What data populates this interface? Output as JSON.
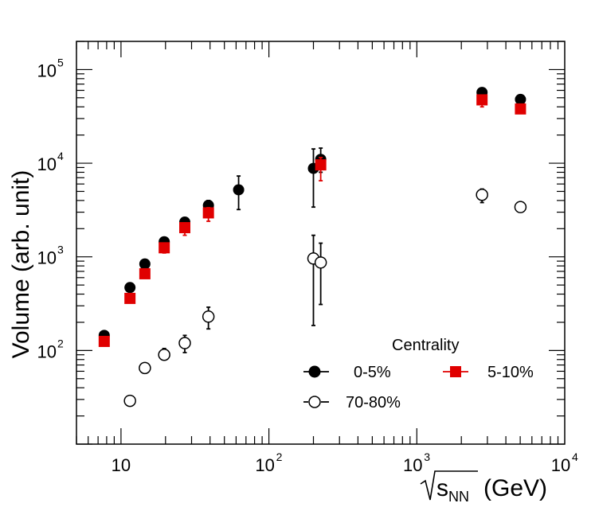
{
  "chart_data": {
    "type": "scatter",
    "xscale": "log",
    "yscale": "log",
    "xlim": [
      5,
      10000
    ],
    "ylim": [
      10,
      200000
    ],
    "xlabel_prefix": "√",
    "xlabel_main": "s",
    "xlabel_sub": "NN",
    "xlabel_unit": "(GeV)",
    "ylabel": "Volume (arb. unit)",
    "x_ticks": [
      {
        "value": 10,
        "base": "10",
        "exp": ""
      },
      {
        "value": 100,
        "base": "10",
        "exp": "2"
      },
      {
        "value": 1000,
        "base": "10",
        "exp": "3"
      },
      {
        "value": 10000,
        "base": "10",
        "exp": "4"
      }
    ],
    "y_ticks": [
      {
        "value": 100,
        "base": "10",
        "exp": "2"
      },
      {
        "value": 1000,
        "base": "10",
        "exp": "3"
      },
      {
        "value": 10000,
        "base": "10",
        "exp": "4"
      },
      {
        "value": 100000,
        "base": "10",
        "exp": "5"
      }
    ],
    "legend": {
      "title": "Centrality",
      "placement": "bottom-right"
    },
    "series": [
      {
        "name": "0-5%",
        "marker": "filled-circle",
        "color": "#000000",
        "points": [
          {
            "x": 7.7,
            "y": 145,
            "lo": 145,
            "hi": 145
          },
          {
            "x": 11.5,
            "y": 470,
            "lo": 470,
            "hi": 470
          },
          {
            "x": 14.5,
            "y": 840,
            "lo": 840,
            "hi": 840
          },
          {
            "x": 19.6,
            "y": 1450,
            "lo": 1450,
            "hi": 1450
          },
          {
            "x": 27,
            "y": 2350,
            "lo": 2150,
            "hi": 2550
          },
          {
            "x": 39,
            "y": 3550,
            "lo": 3150,
            "hi": 4000
          },
          {
            "x": 62.4,
            "y": 5200,
            "lo": 3200,
            "hi": 7300
          },
          {
            "x": 200,
            "y": 8800,
            "lo": 3400,
            "hi": 14200
          },
          {
            "x": 224,
            "y": 11000,
            "lo": 8000,
            "hi": 14500
          },
          {
            "x": 2760,
            "y": 57000,
            "lo": 50000,
            "hi": 63000
          },
          {
            "x": 5020,
            "y": 48000,
            "lo": 48000,
            "hi": 48000
          }
        ]
      },
      {
        "name": "5-10%",
        "marker": "filled-square",
        "color": "#e00000",
        "points": [
          {
            "x": 7.7,
            "y": 125,
            "lo": 125,
            "hi": 125
          },
          {
            "x": 11.5,
            "y": 360,
            "lo": 360,
            "hi": 360
          },
          {
            "x": 14.5,
            "y": 660,
            "lo": 660,
            "hi": 660
          },
          {
            "x": 19.6,
            "y": 1250,
            "lo": 1100,
            "hi": 1350
          },
          {
            "x": 27,
            "y": 2050,
            "lo": 1700,
            "hi": 2300
          },
          {
            "x": 39,
            "y": 2950,
            "lo": 2400,
            "hi": 3350
          },
          {
            "x": 224,
            "y": 9600,
            "lo": 6500,
            "hi": 11500
          },
          {
            "x": 2760,
            "y": 47500,
            "lo": 40000,
            "hi": 52000
          },
          {
            "x": 5020,
            "y": 38000,
            "lo": 38000,
            "hi": 38000
          }
        ]
      },
      {
        "name": "70-80%",
        "marker": "open-circle",
        "color": "#000000",
        "points": [
          {
            "x": 11.5,
            "y": 29,
            "lo": 29,
            "hi": 29
          },
          {
            "x": 14.5,
            "y": 65,
            "lo": 65,
            "hi": 65
          },
          {
            "x": 19.6,
            "y": 90,
            "lo": 80,
            "hi": 105
          },
          {
            "x": 27,
            "y": 120,
            "lo": 95,
            "hi": 145
          },
          {
            "x": 39,
            "y": 230,
            "lo": 170,
            "hi": 290
          },
          {
            "x": 200,
            "y": 960,
            "lo": 185,
            "hi": 1700
          },
          {
            "x": 224,
            "y": 870,
            "lo": 310,
            "hi": 1400
          },
          {
            "x": 2760,
            "y": 4600,
            "lo": 3800,
            "hi": 5300
          },
          {
            "x": 5020,
            "y": 3400,
            "lo": 3400,
            "hi": 3400
          }
        ]
      }
    ]
  }
}
